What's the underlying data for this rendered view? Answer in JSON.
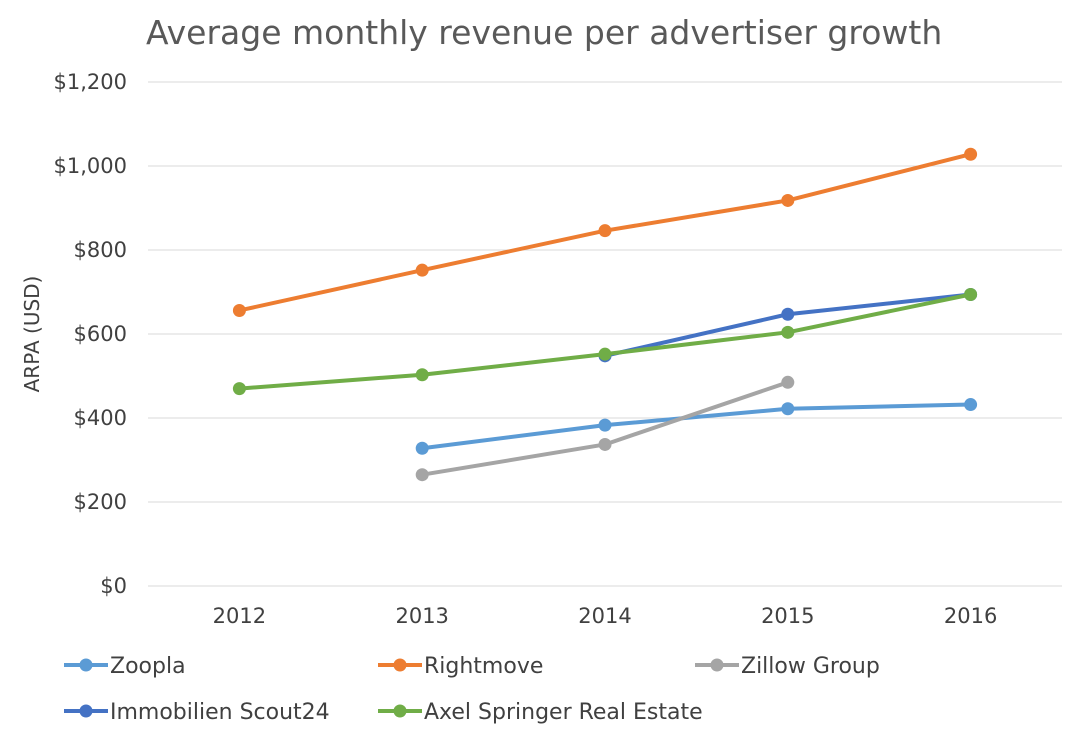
{
  "chart_data": {
    "type": "line",
    "title": "Average monthly revenue per advertiser growth",
    "xlabel": "",
    "ylabel": "ARPA (USD)",
    "categories": [
      "2012",
      "2013",
      "2014",
      "2015",
      "2016"
    ],
    "ylim": [
      0,
      1200
    ],
    "yticks": [
      0,
      200,
      400,
      600,
      800,
      1000,
      1200
    ],
    "ytick_labels": [
      "$0",
      "$200",
      "$400",
      "$600",
      "$800",
      "$1,000",
      "$1,200"
    ],
    "grid": true,
    "legend_position": "bottom",
    "series": [
      {
        "name": "Zoopla",
        "color": "#5b9bd5",
        "values": [
          null,
          328,
          383,
          422,
          432
        ]
      },
      {
        "name": "Rightmove",
        "color": "#ed7d31",
        "values": [
          656,
          752,
          846,
          918,
          1028
        ]
      },
      {
        "name": "Zillow Group",
        "color": "#a5a5a5",
        "values": [
          null,
          265,
          337,
          485,
          null
        ]
      },
      {
        "name": "Immobilien Scout24",
        "color": "#4472c4",
        "values": [
          null,
          null,
          548,
          647,
          694
        ]
      },
      {
        "name": "Axel Springer Real Estate",
        "color": "#70ad47",
        "values": [
          470,
          503,
          552,
          604,
          694
        ]
      }
    ]
  }
}
